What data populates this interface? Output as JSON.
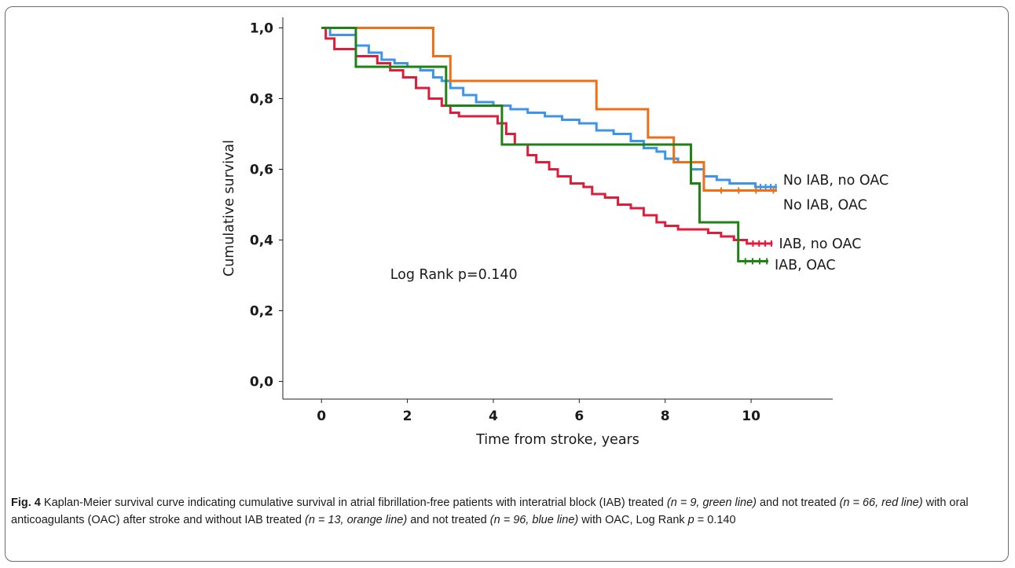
{
  "chart_data": {
    "type": "line",
    "subtype": "kaplan-meier step",
    "title": "",
    "xlabel": "Time from stroke, years",
    "ylabel": "Cumulative survival",
    "xlim": [
      -0.9,
      11.9
    ],
    "ylim": [
      -0.05,
      1.03
    ],
    "xticks": [
      0,
      2,
      4,
      6,
      8,
      10
    ],
    "xtick_labels": [
      "0",
      "2",
      "4",
      "6",
      "8",
      "10"
    ],
    "yticks": [
      0.0,
      0.2,
      0.4,
      0.6,
      0.8,
      1.0
    ],
    "ytick_labels": [
      "0,0",
      "0,2",
      "0,4",
      "0,6",
      "0,8",
      "1,0"
    ],
    "grid": false,
    "annotation": "Log Rank p=0.140",
    "series": [
      {
        "name": "No IAB, no OAC",
        "color": "#3e95e8",
        "x": [
          0,
          0.2,
          0.8,
          1.1,
          1.4,
          1.7,
          2.0,
          2.3,
          2.6,
          2.8,
          3.0,
          3.3,
          3.6,
          4.0,
          4.4,
          4.8,
          5.2,
          5.6,
          6.0,
          6.4,
          6.8,
          7.2,
          7.5,
          7.8,
          8.0,
          8.3,
          8.6,
          8.9,
          9.2,
          9.5,
          9.8,
          10.1,
          10.6
        ],
        "y": [
          1.0,
          0.98,
          0.95,
          0.93,
          0.91,
          0.9,
          0.89,
          0.88,
          0.86,
          0.85,
          0.83,
          0.81,
          0.79,
          0.78,
          0.77,
          0.76,
          0.75,
          0.74,
          0.73,
          0.71,
          0.7,
          0.68,
          0.66,
          0.65,
          0.63,
          0.62,
          0.6,
          0.58,
          0.57,
          0.56,
          0.56,
          0.55,
          0.55
        ],
        "label_y": 0.57
      },
      {
        "name": "No IAB, OAC",
        "color": "#f06e14",
        "x": [
          0,
          2.6,
          2.8,
          3.0,
          6.4,
          7.6,
          8.2,
          8.6,
          8.9,
          10.6
        ],
        "y": [
          1.0,
          0.92,
          0.92,
          0.85,
          0.77,
          0.69,
          0.62,
          0.62,
          0.54,
          0.54
        ],
        "label_y": 0.5
      },
      {
        "name": "IAB, no OAC",
        "color": "#dc1e3c",
        "x": [
          0,
          0.1,
          0.3,
          0.8,
          1.3,
          1.6,
          1.9,
          2.2,
          2.5,
          2.8,
          3.0,
          3.2,
          3.5,
          3.8,
          4.1,
          4.3,
          4.5,
          4.8,
          5.0,
          5.3,
          5.5,
          5.8,
          6.1,
          6.3,
          6.6,
          6.9,
          7.2,
          7.5,
          7.8,
          8.0,
          8.3,
          8.6,
          9.0,
          9.3,
          9.6,
          9.9,
          10.5
        ],
        "y": [
          1.0,
          0.97,
          0.94,
          0.92,
          0.9,
          0.88,
          0.86,
          0.83,
          0.8,
          0.78,
          0.76,
          0.75,
          0.75,
          0.75,
          0.73,
          0.7,
          0.67,
          0.64,
          0.62,
          0.6,
          0.58,
          0.56,
          0.55,
          0.53,
          0.52,
          0.5,
          0.49,
          0.47,
          0.45,
          0.44,
          0.43,
          0.43,
          0.42,
          0.41,
          0.4,
          0.39,
          0.39
        ],
        "label_y": 0.39
      },
      {
        "name": "IAB, OAC",
        "color": "#1e8214",
        "x": [
          0,
          0.8,
          2.9,
          4.2,
          8.6,
          8.8,
          9.7,
          10.4
        ],
        "y": [
          1.0,
          0.89,
          0.78,
          0.67,
          0.56,
          0.45,
          0.34,
          0.34
        ],
        "label_y": 0.33
      }
    ]
  },
  "caption": {
    "label": "Fig. 4",
    "segments": [
      {
        "text": " Kaplan-Meier survival curve indicating cumulative survival in atrial fibrillation-free patients with interatrial block (IAB) treated ",
        "italic": false
      },
      {
        "text": "(n = 9, green line)",
        "italic": true
      },
      {
        "text": " and not treated ",
        "italic": false
      },
      {
        "text": "(n = 66, red line)",
        "italic": true
      },
      {
        "text": " with oral anticoagulants (OAC) after stroke and without IAB treated ",
        "italic": false
      },
      {
        "text": "(n = 13, orange line)",
        "italic": true
      },
      {
        "text": " and not treated ",
        "italic": false
      },
      {
        "text": "(n = 96, blue line)",
        "italic": true
      },
      {
        "text": " with OAC, Log Rank ",
        "italic": false
      },
      {
        "text": "p",
        "italic": true
      },
      {
        "text": " = 0.140",
        "italic": false
      }
    ]
  }
}
